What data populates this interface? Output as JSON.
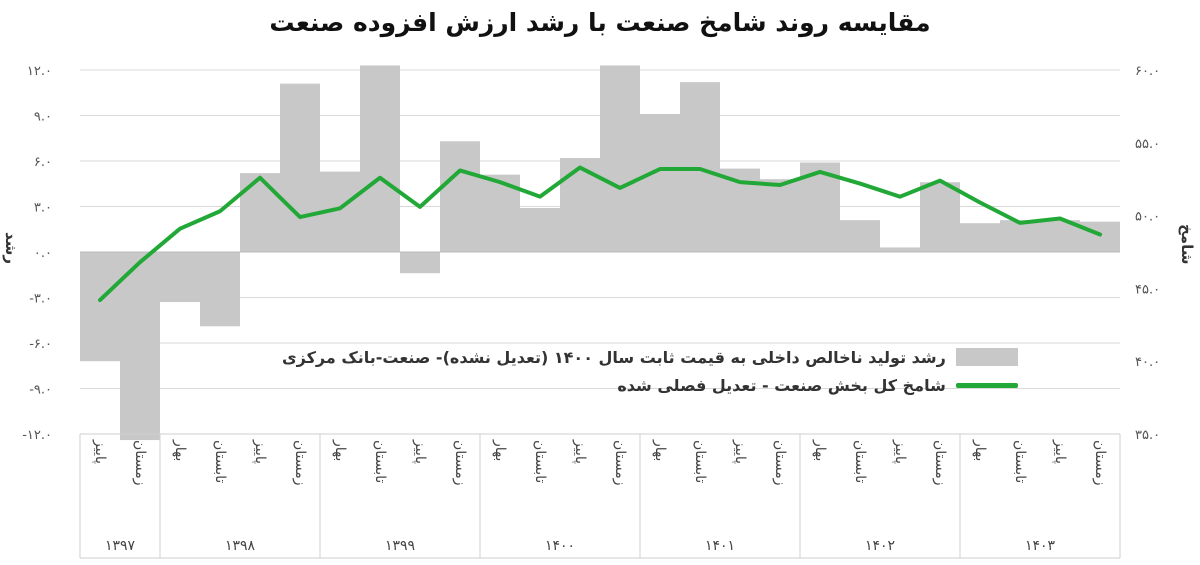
{
  "title": "مقایسه روند شامخ صنعت با رشد ارزش افزوده صنعت",
  "chart_data": {
    "type": "bar+line",
    "title": "مقایسه روند شامخ صنعت با رشد ارزش افزوده صنعت",
    "ylabel_left": "رشد",
    "ylabel_right": "شامخ",
    "ylim_left": [
      -12,
      12
    ],
    "ylim_right": [
      35,
      60
    ],
    "yticks_left": [
      "۱۲.۰",
      "۹.۰",
      "۶.۰",
      "۳.۰",
      "۰.۰",
      "-۳.۰",
      "-۶.۰",
      "-۹.۰",
      "-۱۲.۰"
    ],
    "yticks_right": [
      "۶۰.۰",
      "۵۵.۰",
      "۵۰.۰",
      "۴۵.۰",
      "۴۰.۰",
      "۳۵.۰"
    ],
    "grid": true,
    "legend_position": "bottom-center",
    "categories": [
      "پاییز",
      "زمستان",
      "بهار",
      "تابستان",
      "پاییز",
      "زمستان",
      "بهار",
      "تابستان",
      "پاییز",
      "زمستان",
      "بهار",
      "تابستان",
      "پاییز",
      "زمستان",
      "بهار",
      "تابستان",
      "پاییز",
      "زمستان",
      "بهار",
      "تابستان",
      "پاییز",
      "زمستان",
      "بهار",
      "تابستان",
      "پاییز",
      "زمستان"
    ],
    "groups": [
      {
        "label": "۱۳۹۷",
        "count": 2
      },
      {
        "label": "۱۳۹۸",
        "count": 4
      },
      {
        "label": "۱۳۹۹",
        "count": 4
      },
      {
        "label": "۱۴۰۰",
        "count": 4
      },
      {
        "label": "۱۴۰۱",
        "count": 4
      },
      {
        "label": "۱۴۰۲",
        "count": 4
      },
      {
        "label": "۱۴۰۳",
        "count": 4
      }
    ],
    "series": [
      {
        "name": "رشد تولید ناخالص داخلی به قیمت ثابت سال ۱۴۰۰ (تعدیل نشده)- صنعت-بانک مرکزی",
        "type": "bar",
        "axis": "left",
        "color": "#c8c8c8",
        "values": [
          -7.2,
          -12.4,
          -3.3,
          -4.9,
          5.2,
          11.1,
          5.3,
          12.3,
          -1.4,
          7.3,
          5.1,
          2.9,
          6.2,
          12.3,
          9.1,
          11.2,
          5.5,
          4.8,
          5.9,
          2.1,
          0.3,
          4.6,
          1.9,
          2.1,
          2.1,
          2.0
        ],
        "values_note_skip": ""
      },
      {
        "name": "شامخ کل بخش صنعت - تعدیل فصلی شده",
        "type": "line",
        "axis": "right",
        "color": "#21a837",
        "values": [
          44.2,
          46.8,
          49.1,
          50.3,
          52.6,
          49.9,
          50.5,
          52.6,
          50.6,
          53.1,
          52.3,
          51.3,
          53.3,
          51.9,
          53.2,
          53.2,
          52.3,
          52.1,
          53.0,
          52.2,
          51.3,
          52.4,
          50.9,
          49.5,
          49.8,
          48.7
        ]
      }
    ]
  }
}
